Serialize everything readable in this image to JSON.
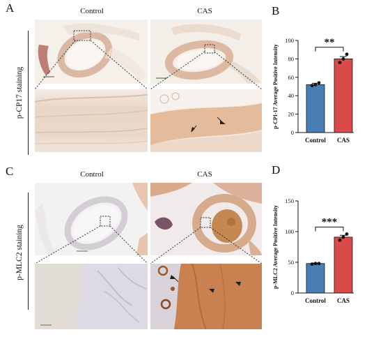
{
  "panels": {
    "A": {
      "letter": "A",
      "col_control": "Control",
      "col_cas": "CAS",
      "row_label": "p-CP17 staining"
    },
    "B": {
      "letter": "B"
    },
    "C": {
      "letter": "C",
      "col_control": "Control",
      "col_cas": "CAS",
      "row_label": "p-MLC2 staining"
    },
    "D": {
      "letter": "D"
    }
  },
  "colors": {
    "control_bar": "#4a7fb5",
    "cas_bar": "#d94a48",
    "ihc_background": "#f2ebe4",
    "ihc_brown": "#c98a5a",
    "ihc_blue": "#b9b6cf"
  },
  "chart_data": [
    {
      "type": "bar",
      "panel": "B",
      "categories": [
        "Control",
        "CAS"
      ],
      "values": [
        52,
        80
      ],
      "points": [
        [
          51,
          52,
          54
        ],
        [
          76,
          80,
          85
        ]
      ],
      "errors": [
        1.5,
        2.5
      ],
      "ylabel": "p-CPI-17 Average Positive Intensity",
      "xlabel": "",
      "ylim": [
        0,
        100
      ],
      "yticks": [
        0,
        20,
        40,
        60,
        80,
        100
      ],
      "significance": "**"
    },
    {
      "type": "bar",
      "panel": "D",
      "categories": [
        "Control",
        "CAS"
      ],
      "values": [
        48,
        91
      ],
      "points": [
        [
          47,
          48,
          48
        ],
        [
          86,
          91,
          96
        ]
      ],
      "errors": [
        0.7,
        3.0
      ],
      "ylabel": "p-MLC2 Average Positive Intensity",
      "xlabel": "",
      "ylim": [
        0,
        150
      ],
      "yticks": [
        0,
        50,
        100,
        150
      ],
      "significance": "***"
    }
  ]
}
